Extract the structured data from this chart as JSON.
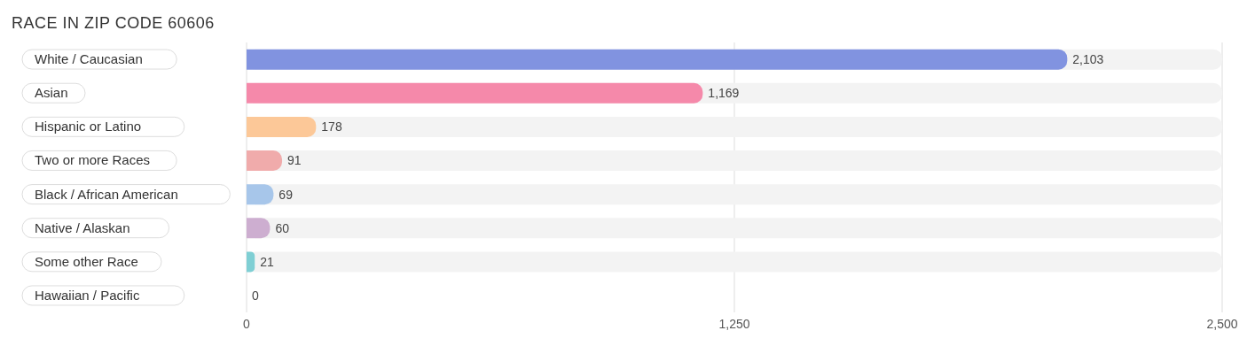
{
  "chart_data": {
    "type": "bar",
    "orientation": "horizontal",
    "title": "RACE IN ZIP CODE 60606",
    "categories": [
      "White / Caucasian",
      "Asian",
      "Hispanic or Latino",
      "Two or more Races",
      "Black / African American",
      "Native / Alaskan",
      "Some other Race",
      "Hawaiian / Pacific"
    ],
    "values": [
      2103,
      1169,
      178,
      91,
      69,
      60,
      21,
      0
    ],
    "colors": [
      "#8193e0",
      "#f589aa",
      "#fcc898",
      "#f0abab",
      "#a7c6ea",
      "#cdaed0",
      "#7fcfd4",
      "#b3bdea"
    ],
    "xlim": [
      0,
      2500
    ],
    "xticks": [
      0,
      {
        "value": 1250,
        "label": "1,250"
      },
      {
        "value": 2500,
        "label": "2,500"
      }
    ],
    "grid": "x",
    "value_labels": [
      "2,103",
      "1,169",
      "178",
      "91",
      "69",
      "60",
      "21",
      "0"
    ]
  }
}
